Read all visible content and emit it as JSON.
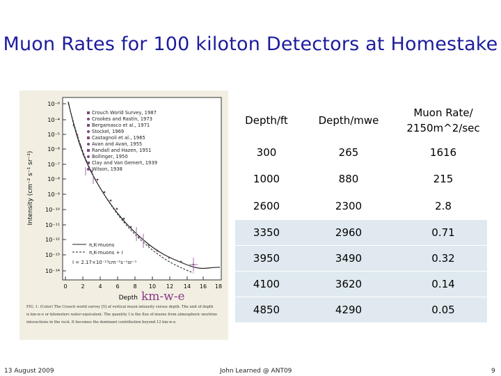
{
  "slide": {
    "title": "Muon Rates for 100 kiloton Detectors at Homestake",
    "footer_date": "13 August 2009",
    "footer_author": "John Learned @ ANT09",
    "page_number": "9"
  },
  "figure": {
    "y_axis_label": "Intensity (cm⁻² s⁻¹ sr⁻¹)",
    "x_axis_label": "Depth",
    "x_unit_annotation": "km-w-e",
    "y_ticks": [
      "10⁻⁶",
      "10⁻⁴",
      "10⁻⁵",
      "10⁻⁶",
      "10⁻⁷",
      "10⁻⁸",
      "10⁻⁹",
      "10⁻¹⁰",
      "10⁻¹¹",
      "10⁻¹²",
      "10⁻¹³",
      "10⁻¹⁴"
    ],
    "x_ticks": [
      "0",
      "2",
      "4",
      "6",
      "8",
      "10",
      "12",
      "14",
      "16",
      "18"
    ],
    "legend": [
      "Crouch World Survey, 1987",
      "Crookes and Rastin, 1973",
      "Bergamasco et al., 1971",
      "Stockel, 1969",
      "Castagnoli et al., 1965",
      "Avan and Avan, 1955",
      "Randall and Hazen, 1951",
      "Bollinger, 1950",
      "Clay and Van Gemert, 1939",
      "Wilson, 1938"
    ],
    "curve_labels": [
      "π,K-muons",
      "π,K-muons + I",
      "I = 2.17×10⁻¹³cm⁻²s⁻¹sr⁻¹"
    ],
    "caption_lines": [
      "FIG. 1: (Color) The Crouch world survey [5] of vertical muon intensity versus depth. The unit of depth",
      "is km-w-e or kilometers water-equivalent. The quantity I is the flux of muons from atmospheric neutrino",
      "interactions in the rock. It becomes the dominant contribution beyond 12 km-w-e."
    ]
  },
  "table": {
    "headers": [
      "Depth/ft",
      "Depth/mwe",
      "Muon Rate/",
      "2150m^2/sec"
    ],
    "rows": [
      [
        "300",
        "265",
        "1616"
      ],
      [
        "1000",
        "880",
        "215"
      ],
      [
        "2600",
        "2300",
        "2.8"
      ],
      [
        "3350",
        "2960",
        "0.71"
      ],
      [
        "3950",
        "3490",
        "0.32"
      ],
      [
        "4100",
        "3620",
        "0.14"
      ],
      [
        "4850",
        "4290",
        "0.05"
      ]
    ]
  },
  "colors": {
    "title": "#1c1c9c",
    "table_tint": "#dfe9ef",
    "figure_bg": "#f2efe2",
    "unit_annotation": "#8a3a8a"
  }
}
